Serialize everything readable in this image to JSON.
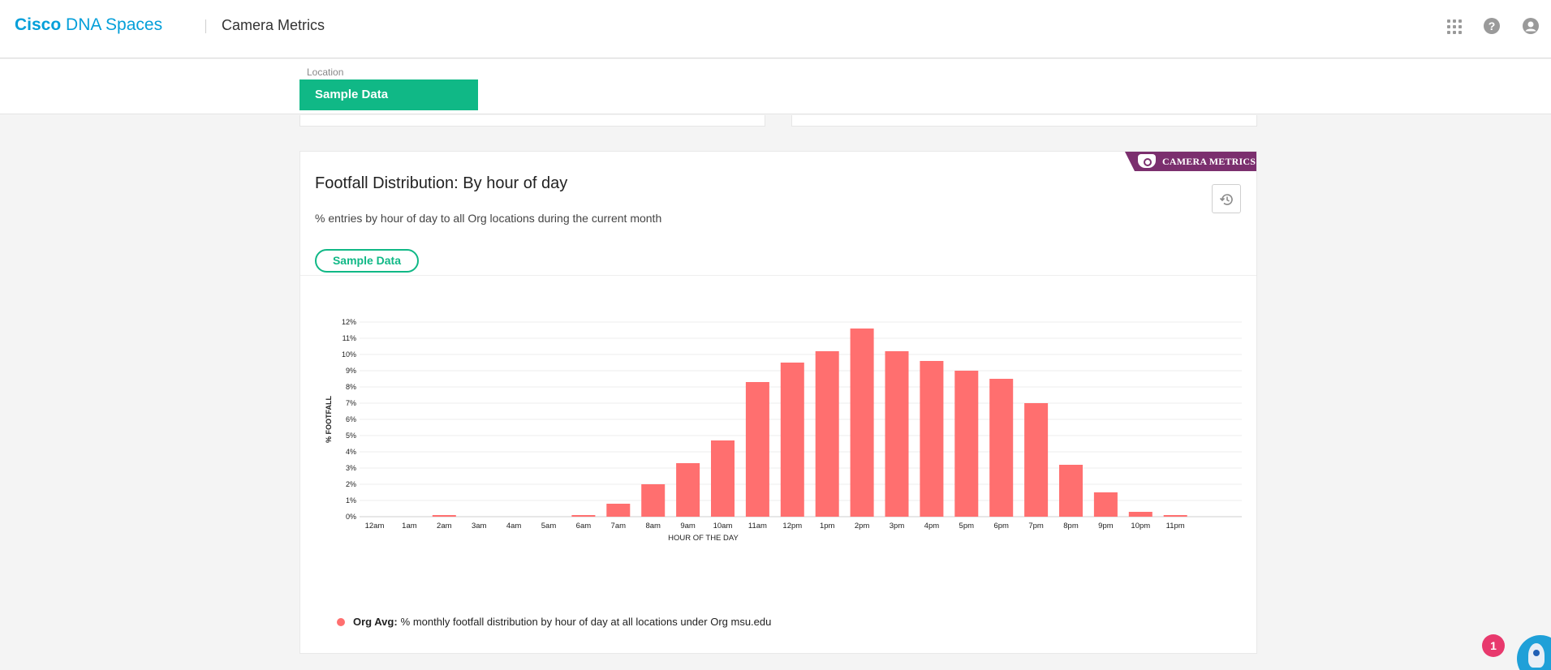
{
  "header": {
    "brand_bold": "Cisco",
    "brand_rest": "DNA Spaces",
    "app_title": "Camera Metrics",
    "icons": [
      "apps-grid-icon",
      "help-icon",
      "user-icon"
    ]
  },
  "location": {
    "label": "Location",
    "selected": "Sample Data"
  },
  "card": {
    "badge": "CAMERA METRICS",
    "title": "Footfall Distribution: By hour of day",
    "subtitle": "% entries by hour of day to all Org locations during the current month",
    "filter_pill": "Sample Data",
    "history_icon": "history-icon"
  },
  "legend": {
    "bold": "Org Avg:",
    "text": "% monthly footfall distribution by hour of day at all locations under Org msu.edu"
  },
  "notification": {
    "count": "1"
  },
  "colors": {
    "brand": "#049fd9",
    "accent_green": "#10b886",
    "bar": "#ff6f6f",
    "badge_purple": "#7b2f6e",
    "notif_red": "#e8396d"
  },
  "chart_data": {
    "type": "bar",
    "xlabel": "HOUR OF THE DAY",
    "ylabel": "% FOOTFALL",
    "ylim": [
      0,
      12
    ],
    "yticks": [
      "0%",
      "1%",
      "2%",
      "3%",
      "4%",
      "5%",
      "6%",
      "7%",
      "8%",
      "9%",
      "10%",
      "11%",
      "12%"
    ],
    "grid": true,
    "categories": [
      "12am",
      "1am",
      "2am",
      "3am",
      "4am",
      "5am",
      "6am",
      "7am",
      "8am",
      "9am",
      "10am",
      "11am",
      "12pm",
      "1pm",
      "2pm",
      "3pm",
      "4pm",
      "5pm",
      "6pm",
      "7pm",
      "8pm",
      "9pm",
      "10pm",
      "11pm"
    ],
    "series": [
      {
        "name": "Org Avg",
        "values": [
          0,
          0,
          0.1,
          0,
          0,
          0,
          0.1,
          0.8,
          2.0,
          3.3,
          4.7,
          8.3,
          9.5,
          10.2,
          11.6,
          10.2,
          9.6,
          9.0,
          8.5,
          7.0,
          3.2,
          1.5,
          0.3,
          0.1
        ]
      }
    ]
  }
}
